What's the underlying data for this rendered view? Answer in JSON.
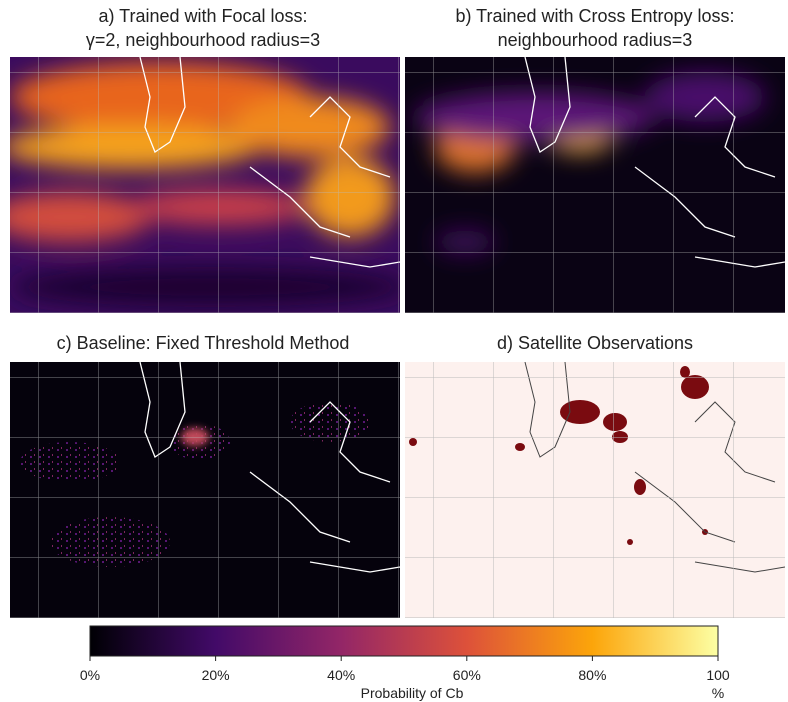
{
  "panels": [
    {
      "title_lines": [
        "a) Trained with Focal loss:",
        "γ=2, neighbourhood radius=3"
      ]
    },
    {
      "title_lines": [
        "b) Trained with Cross Entropy loss:",
        "neighbourhood radius=3"
      ]
    },
    {
      "title_lines": [
        "c) Baseline: Fixed Threshold Method"
      ]
    },
    {
      "title_lines": [
        "d) Satellite Observations"
      ]
    }
  ],
  "colorbar": {
    "label": "Probability of Cb",
    "unit": "%",
    "lim": [
      0,
      100
    ],
    "colors": [
      "#000004",
      "#420a68",
      "#932667",
      "#dd513a",
      "#fca50a",
      "#fcffa4"
    ],
    "ticks": [
      {
        "value": 0,
        "label": "0%"
      },
      {
        "value": 20,
        "label": "20%"
      },
      {
        "value": 40,
        "label": "40%"
      },
      {
        "value": 60,
        "label": "60%"
      },
      {
        "value": 80,
        "label": "80%"
      },
      100
    ]
  }
}
